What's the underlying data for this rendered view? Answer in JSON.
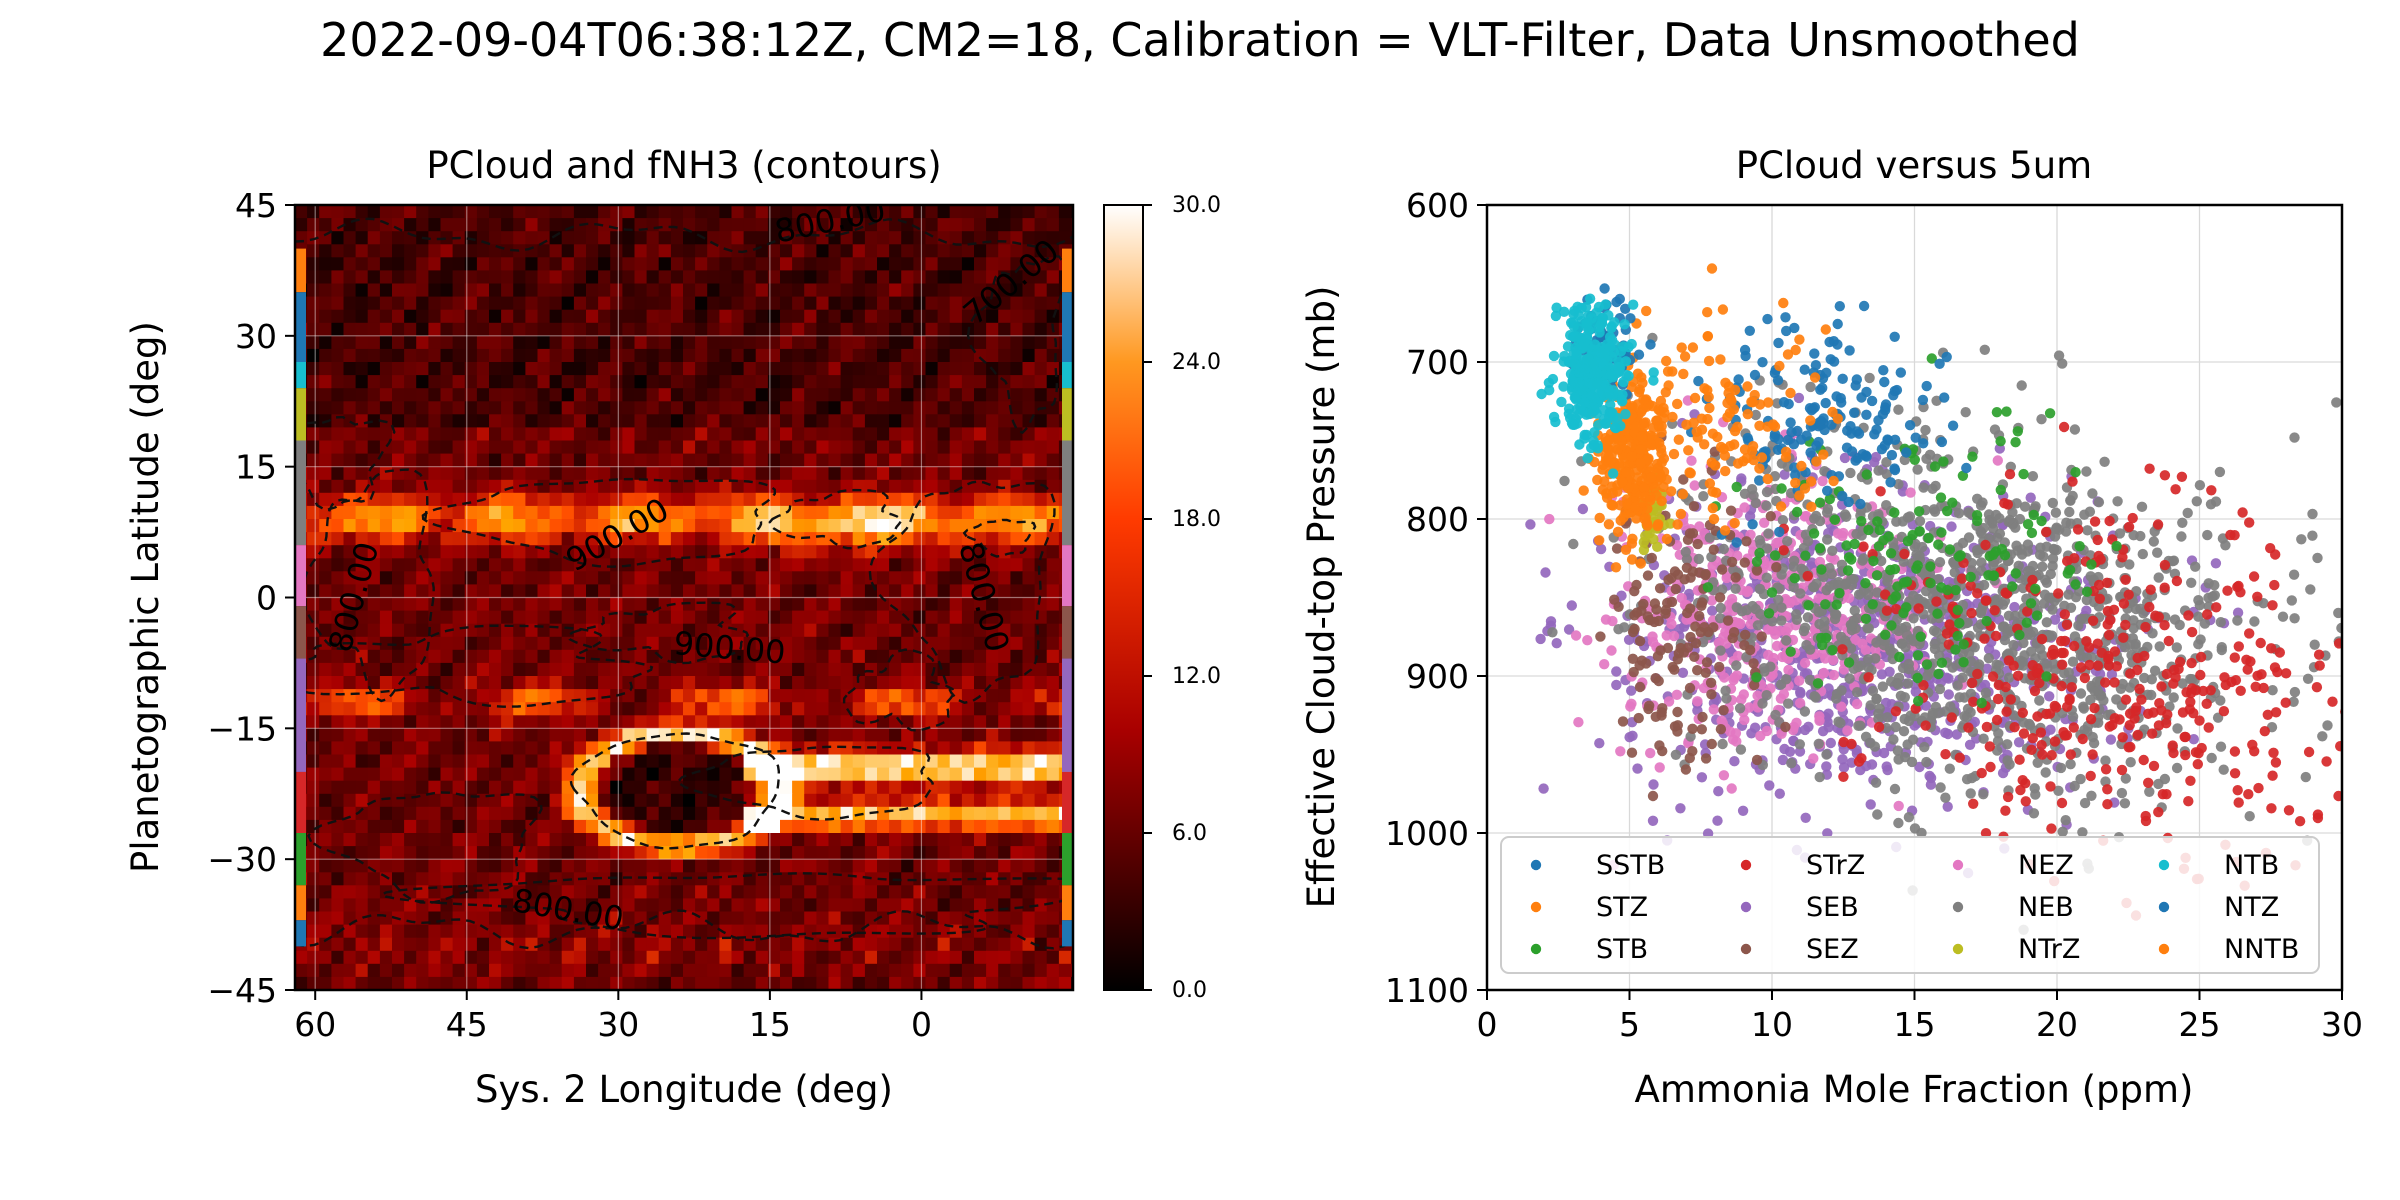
{
  "figure": {
    "suptitle": "2022-09-04T06:38:12Z, CM2=18, Calibration = VLT-Filter, Data Unsmoothed"
  },
  "chart_data": [
    {
      "type": "heatmap",
      "title": "PCloud and fNH3 (contours)",
      "xlabel": "Sys. 2 Longitude (deg)",
      "ylabel": "Planetographic Latitude (deg)",
      "xlim": [
        62,
        -15
      ],
      "ylim": [
        -45,
        45
      ],
      "xticks": [
        "60",
        "45",
        "30",
        "15",
        "0"
      ],
      "xtick_values": [
        60,
        45,
        30,
        15,
        0
      ],
      "yticks": [
        "45",
        "30",
        "15",
        "0",
        "−15",
        "−30",
        "−45"
      ],
      "ytick_values": [
        45,
        30,
        15,
        0,
        -15,
        -30,
        -45
      ],
      "colormap": "gist_heat",
      "colorbar": {
        "ticks": [
          "0.0",
          "6.0",
          "12.0",
          "18.0",
          "24.0",
          "30.0"
        ],
        "tick_values": [
          0,
          6,
          12,
          18,
          24,
          30
        ],
        "range": [
          0,
          30
        ]
      },
      "features": [
        {
          "name": "bright band NEB",
          "lat": 9,
          "value": 26
        },
        {
          "name": "bright band SEB north",
          "lat": -12,
          "value": 20
        },
        {
          "name": "bright band SEB south",
          "lat": -21,
          "value": 28
        },
        {
          "name": "bright ring",
          "lon": 24,
          "lat": -22,
          "value": 26
        },
        {
          "name": "dark core",
          "lon": 23,
          "lat": -22,
          "value": 4
        }
      ],
      "contour_labels": [
        {
          "text": "800.00",
          "lon": 9,
          "lat": 43,
          "rotation": -12
        },
        {
          "text": "700.00",
          "lon": -9,
          "lat": 36,
          "rotation": -40
        },
        {
          "text": "900.00",
          "lon": 30,
          "lat": 7,
          "rotation": -30
        },
        {
          "text": "800.00",
          "lon": 56,
          "lat": 0,
          "rotation": -75
        },
        {
          "text": "800.00",
          "lon": -6,
          "lat": 0,
          "rotation": 75
        },
        {
          "text": "900.00",
          "lon": 19,
          "lat": -6,
          "rotation": 5
        },
        {
          "text": "800.00",
          "lon": 35,
          "lat": -36,
          "rotation": 10
        }
      ],
      "band_markers": [
        {
          "lat_range": [
            40,
            35
          ],
          "color": "#ff7f0e"
        },
        {
          "lat_range": [
            35,
            27
          ],
          "color": "#1f77b4"
        },
        {
          "lat_range": [
            27,
            24
          ],
          "color": "#17becf"
        },
        {
          "lat_range": [
            24,
            18
          ],
          "color": "#bcbd22"
        },
        {
          "lat_range": [
            18,
            6
          ],
          "color": "#7f7f7f"
        },
        {
          "lat_range": [
            6,
            -1
          ],
          "color": "#e377c2"
        },
        {
          "lat_range": [
            -1,
            -7
          ],
          "color": "#8c564b"
        },
        {
          "lat_range": [
            -7,
            -20
          ],
          "color": "#9467bd"
        },
        {
          "lat_range": [
            -20,
            -27
          ],
          "color": "#d62728"
        },
        {
          "lat_range": [
            -27,
            -33
          ],
          "color": "#2ca02c"
        },
        {
          "lat_range": [
            -33,
            -37
          ],
          "color": "#ff7f0e"
        },
        {
          "lat_range": [
            -37,
            -40
          ],
          "color": "#1f77b4"
        }
      ]
    },
    {
      "type": "scatter",
      "title": "PCloud versus 5um",
      "xlabel": "Ammonia Mole Fraction (ppm)",
      "ylabel": "Effective Cloud-top Pressure (mb)",
      "xlim": [
        0,
        30
      ],
      "ylim": [
        1100,
        600
      ],
      "xticks": [
        "0",
        "5",
        "10",
        "15",
        "20",
        "25",
        "30"
      ],
      "xtick_values": [
        0,
        5,
        10,
        15,
        20,
        25,
        30
      ],
      "yticks": [
        "600",
        "700",
        "800",
        "900",
        "1000",
        "1100"
      ],
      "ytick_values": [
        600,
        700,
        800,
        900,
        1000,
        1100
      ],
      "grid": true,
      "legend": "lower-center",
      "series": [
        {
          "name": "SSTB",
          "color": "#1f77b4",
          "cx": 11.5,
          "cy": 730,
          "sx": 2.2,
          "sy": 28,
          "n": 160
        },
        {
          "name": "STZ",
          "color": "#ff7f0e",
          "cx": 8.5,
          "cy": 740,
          "sx": 1.8,
          "sy": 30,
          "n": 120
        },
        {
          "name": "STB",
          "color": "#2ca02c",
          "cx": 15,
          "cy": 830,
          "sx": 3,
          "sy": 45,
          "n": 150
        },
        {
          "name": "STrZ",
          "color": "#d62728",
          "cx": 22,
          "cy": 900,
          "sx": 4.2,
          "sy": 55,
          "n": 380
        },
        {
          "name": "SEB",
          "color": "#9467bd",
          "cx": 13,
          "cy": 880,
          "sx": 4.5,
          "sy": 50,
          "n": 750
        },
        {
          "name": "SEZ",
          "color": "#8c564b",
          "cx": 7,
          "cy": 870,
          "sx": 1.4,
          "sy": 45,
          "n": 150
        },
        {
          "name": "NEZ",
          "color": "#e377c2",
          "cx": 10,
          "cy": 860,
          "sx": 2.8,
          "sy": 45,
          "n": 450
        },
        {
          "name": "NEB",
          "color": "#7f7f7f",
          "cx": 17,
          "cy": 860,
          "sx": 5,
          "sy": 55,
          "n": 1150
        },
        {
          "name": "NTrZ",
          "color": "#bcbd22",
          "cx": 5.8,
          "cy": 800,
          "sx": 0.3,
          "sy": 10,
          "n": 35
        },
        {
          "name": "NTB",
          "color": "#17becf",
          "cx": 3.7,
          "cy": 705,
          "sx": 0.6,
          "sy": 20,
          "n": 320
        },
        {
          "name": "NTZ",
          "color": "#1f77b4",
          "cx": 4.1,
          "cy": 690,
          "sx": 0.6,
          "sy": 15,
          "n": 70
        },
        {
          "name": "NNTB",
          "color": "#ff7f0e",
          "cx": 5.2,
          "cy": 760,
          "sx": 0.6,
          "sy": 25,
          "n": 300
        }
      ]
    }
  ]
}
